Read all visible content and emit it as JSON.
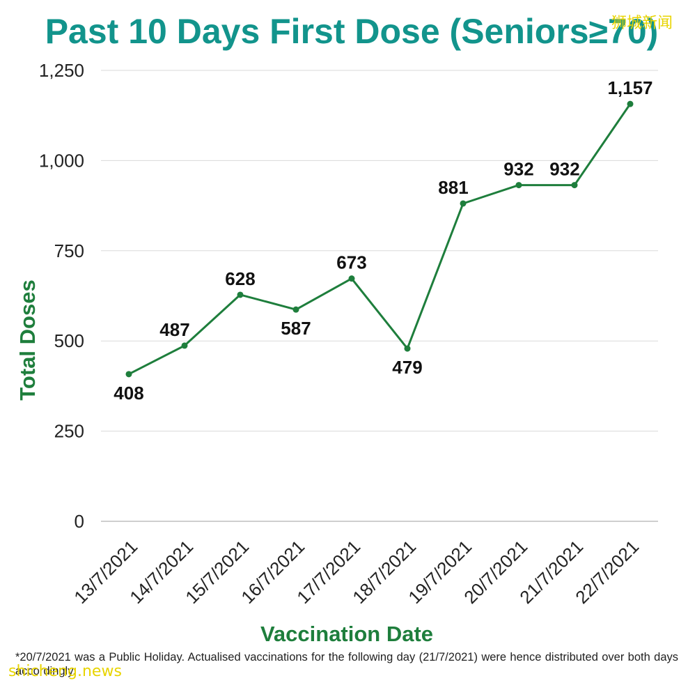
{
  "title": "Past 10 Days First Dose (Seniors≥70)",
  "watermark_cn": "狮城新闻",
  "watermark_en": "shicheng.news",
  "footnote": "*20/7/2021 was a Public Holiday. Actualised vaccinations for the following day (21/7/2021) were hence distributed over both days accordingly.",
  "colors": {
    "title": "#12948c",
    "line": "#1e7e3c",
    "axis_title": "#1e7e3c",
    "grid": "#d9d9d9",
    "watermark_cn": "#e8d400",
    "watermark_en": "#e8d400"
  },
  "chart_data": {
    "type": "line",
    "title": "Past 10 Days First Dose (Seniors≥70)",
    "xlabel": "Vaccination Date",
    "ylabel": "Total Doses",
    "ylim": [
      0,
      1250
    ],
    "yticks": [
      0,
      250,
      500,
      750,
      1000,
      1250
    ],
    "ytick_labels": [
      "0",
      "250",
      "500",
      "750",
      "1,000",
      "1,250"
    ],
    "grid": true,
    "categories": [
      "13/7/2021",
      "14/7/2021",
      "15/7/2021",
      "16/7/2021",
      "17/7/2021",
      "18/7/2021",
      "19/7/2021",
      "20/7/2021",
      "21/7/2021",
      "22/7/2021"
    ],
    "series": [
      {
        "values": [
          408,
          487,
          628,
          587,
          673,
          479,
          881,
          932,
          932,
          1157
        ],
        "data_labels": [
          "408",
          "487",
          "628",
          "587",
          "673",
          "479",
          "881",
          "932",
          "932",
          "1,157"
        ]
      }
    ]
  }
}
